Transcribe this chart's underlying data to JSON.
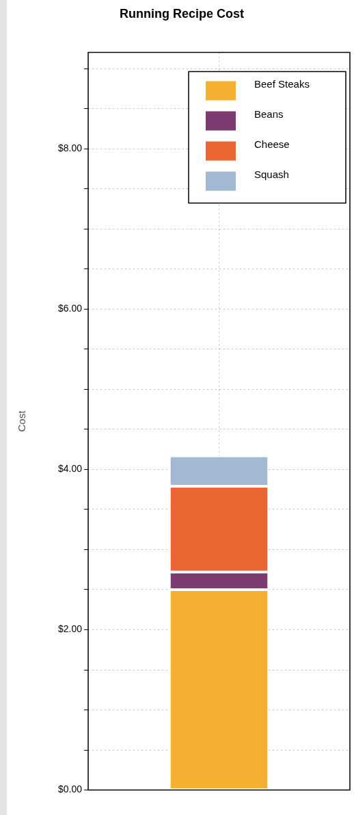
{
  "chart_data": {
    "type": "bar",
    "title": "Running Recipe Cost",
    "ylabel": "Cost",
    "categories": [
      null
    ],
    "stacked": true,
    "series": [
      {
        "name": "Beef Steaks",
        "color": "#f5b031",
        "values": [
          2.5
        ]
      },
      {
        "name": "Beans",
        "color": "#7b3a70",
        "values": [
          0.22
        ]
      },
      {
        "name": "Cheese",
        "color": "#ec6632",
        "values": [
          1.07
        ]
      },
      {
        "name": "Squash",
        "color": "#a3b8d2",
        "values": [
          0.38
        ]
      }
    ],
    "ylim": [
      0,
      9.2
    ],
    "yticks": [
      {
        "value": 0,
        "label": "$0.00"
      },
      {
        "value": 0.5,
        "label": null
      },
      {
        "value": 1,
        "label": null
      },
      {
        "value": 1.5,
        "label": null
      },
      {
        "value": 2,
        "label": "$2.00"
      },
      {
        "value": 2.5,
        "label": null
      },
      {
        "value": 3,
        "label": null
      },
      {
        "value": 3.5,
        "label": null
      },
      {
        "value": 4,
        "label": "$4.00"
      },
      {
        "value": 4.5,
        "label": null
      },
      {
        "value": 5,
        "label": null
      },
      {
        "value": 5.5,
        "label": null
      },
      {
        "value": 6,
        "label": "$6.00"
      },
      {
        "value": 6.5,
        "label": null
      },
      {
        "value": 7,
        "label": null
      },
      {
        "value": 7.5,
        "label": null
      },
      {
        "value": 8,
        "label": "$8.00"
      },
      {
        "value": 8.5,
        "label": null
      },
      {
        "value": 9,
        "label": null
      }
    ],
    "grid": true,
    "legend": "top right"
  }
}
